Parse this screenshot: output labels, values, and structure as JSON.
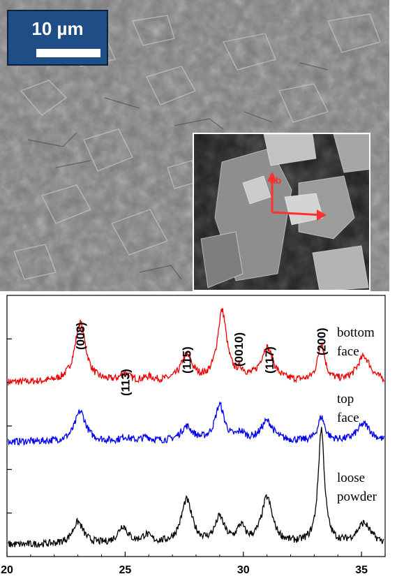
{
  "sem": {
    "scale_bar_text": "10 µm",
    "inset_arrow_label": "ab",
    "colors": {
      "badge": "#1f4e86",
      "arrow": "#ff3030"
    }
  },
  "chart_data": {
    "type": "line",
    "xlim": [
      20,
      36
    ],
    "x_ticks": [
      20,
      25,
      30,
      35
    ],
    "x_tick_labels": [
      "20",
      "25",
      "30",
      "35"
    ],
    "ylim": [
      0,
      3.3
    ],
    "y_ticks": [
      0.55,
      1.1,
      1.65,
      2.2,
      2.75
    ],
    "grid": false,
    "legend": "none",
    "peak_labels": [
      {
        "label": "(008)",
        "x": 23.1
      },
      {
        "label": "(113)",
        "x": 25.0
      },
      {
        "label": "(115)",
        "x": 27.6
      },
      {
        "label": "(0010)",
        "x": 29.8
      },
      {
        "label": "(117)",
        "x": 31.1
      },
      {
        "label": "(200)",
        "x": 33.3
      }
    ],
    "series": [
      {
        "label_lines": [
          "bottom",
          "face"
        ],
        "color": "#ee0000",
        "baseline": 2.2,
        "peaks": [
          {
            "x": 23.1,
            "h": 0.75,
            "w": 0.28
          },
          {
            "x": 25.0,
            "h": 0.1,
            "w": 0.22
          },
          {
            "x": 26.0,
            "h": 0.05,
            "w": 0.25
          },
          {
            "x": 27.6,
            "h": 0.32,
            "w": 0.3
          },
          {
            "x": 29.1,
            "h": 0.88,
            "w": 0.24
          },
          {
            "x": 29.9,
            "h": 0.09,
            "w": 0.2
          },
          {
            "x": 31.0,
            "h": 0.42,
            "w": 0.32
          },
          {
            "x": 33.3,
            "h": 0.48,
            "w": 0.18
          },
          {
            "x": 35.1,
            "h": 0.32,
            "w": 0.35
          }
        ]
      },
      {
        "label_lines": [
          "top",
          "face"
        ],
        "color": "#0000ee",
        "baseline": 1.45,
        "peaks": [
          {
            "x": 23.1,
            "h": 0.38,
            "w": 0.28
          },
          {
            "x": 25.0,
            "h": 0.05,
            "w": 0.22
          },
          {
            "x": 25.9,
            "h": 0.05,
            "w": 0.22
          },
          {
            "x": 27.6,
            "h": 0.18,
            "w": 0.3
          },
          {
            "x": 29.0,
            "h": 0.45,
            "w": 0.24
          },
          {
            "x": 29.9,
            "h": 0.09,
            "w": 0.2
          },
          {
            "x": 31.0,
            "h": 0.25,
            "w": 0.32
          },
          {
            "x": 33.3,
            "h": 0.3,
            "w": 0.18
          },
          {
            "x": 35.1,
            "h": 0.22,
            "w": 0.35
          }
        ]
      },
      {
        "label_lines": [
          "loose",
          "powder"
        ],
        "color": "#000000",
        "baseline": 0.15,
        "peaks": [
          {
            "x": 23.0,
            "h": 0.28,
            "w": 0.28
          },
          {
            "x": 24.9,
            "h": 0.22,
            "w": 0.25
          },
          {
            "x": 25.9,
            "h": 0.1,
            "w": 0.25
          },
          {
            "x": 27.6,
            "h": 0.55,
            "w": 0.28
          },
          {
            "x": 29.0,
            "h": 0.32,
            "w": 0.24
          },
          {
            "x": 29.9,
            "h": 0.2,
            "w": 0.2
          },
          {
            "x": 31.0,
            "h": 0.58,
            "w": 0.28
          },
          {
            "x": 33.3,
            "h": 1.45,
            "w": 0.16
          },
          {
            "x": 35.1,
            "h": 0.26,
            "w": 0.35
          }
        ]
      }
    ]
  }
}
